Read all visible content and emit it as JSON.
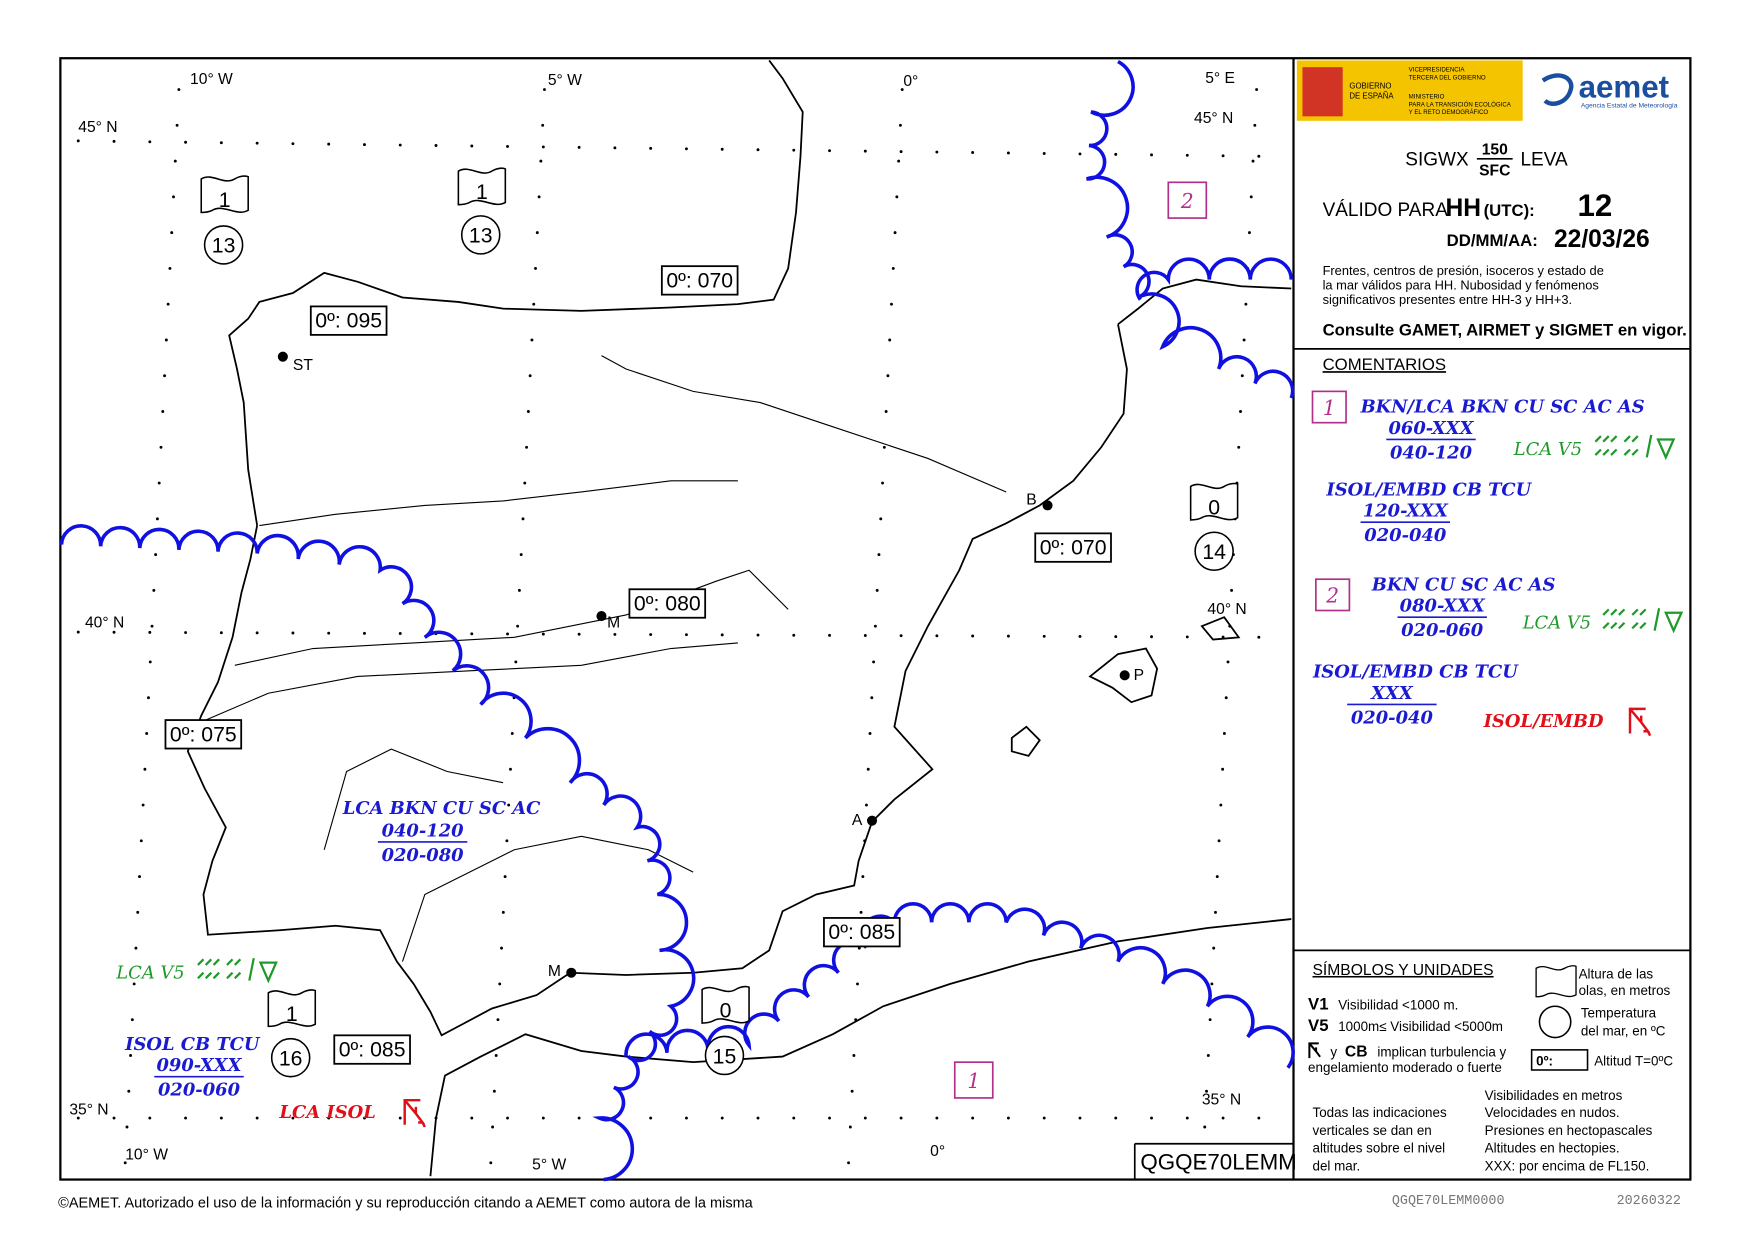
{
  "header": {
    "sigwx": "SIGWX",
    "level_top": "150",
    "level_bottom": "SFC",
    "leva": "LEVA",
    "valid_for": "VÁLIDO PARA",
    "hh": "HH",
    "utc": "(UTC):",
    "hour": "12",
    "date_label": "DD/MM/AA:",
    "date": "22/03/26",
    "description": [
      "Frentes, centros de presión, isoceros y estado de",
      "la mar válidos para HH. Nubosidad y fenómenos",
      "significativos presentes entre HH-3 y HH+3."
    ],
    "consult": "Consulte GAMET, AIRMET y SIGMET en vigor."
  },
  "logo": {
    "gov": [
      "GOBIERNO",
      "DE ESPAÑA"
    ],
    "vice": [
      "VICEPRESIDENCIA",
      "TERCERA DEL GOBIERNO"
    ],
    "ministry": [
      "MINISTERIO",
      "PARA LA TRANSICIÓN ECOLÓGICA",
      "Y EL RETO DEMOGRÁFICO"
    ],
    "aemet": "aemet",
    "agency": "Agencia Estatal de Meteorología"
  },
  "comments": {
    "title": "COMENTARIOS",
    "areas": [
      {
        "id": "1",
        "cloud": "BKN/LCA BKN CU SC AC AS",
        "cloud_top": "060-XXX",
        "cloud_base": "040-120",
        "vis": "LCA V5",
        "cb": "ISOL/EMBD CB TCU",
        "cb_top": "120-XXX",
        "cb_base": "020-040"
      },
      {
        "id": "2",
        "cloud": "BKN CU SC AC AS",
        "cloud_top": "080-XXX",
        "cloud_base": "020-060",
        "vis": "LCA V5",
        "cb": "ISOL/EMBD CB TCU",
        "cb_top": "XXX",
        "cb_base": "020-040",
        "turb": "ISOL/EMBD"
      }
    ]
  },
  "symbols": {
    "title": "SÍMBOLOS Y UNIDADES",
    "v1": "V1",
    "v1_text": "Visibilidad <1000 m.",
    "v5": "V5",
    "v5_text": "1000m≤ Visibilidad <5000m",
    "turb_y": "y",
    "turb_cb": "CB",
    "turb_text": [
      "implican turbulencia y",
      "engelamiento moderado o fuerte"
    ],
    "wave": [
      "Altura de las",
      "olas, en metros"
    ],
    "temp": [
      "Temperatura",
      "del mar, en ºC"
    ],
    "fl_box": "0º:",
    "fl_text": "Altitud T=0ºC",
    "notes": [
      "Todas las indicaciones",
      "verticales se dan en",
      "altitudes sobre el nivel",
      "del mar."
    ],
    "units": [
      "Visibilidades en metros",
      "Velocidades en nudos.",
      "Presiones en hectopascales",
      "Altitudes en hectopies.",
      "XXX: por encima de FL150."
    ]
  },
  "map": {
    "coords": [
      "10° W",
      "5° W",
      "0°",
      "5° E",
      "45° N",
      "45° N",
      "40° N",
      "40° N",
      "35° N",
      "35° N",
      "10° W",
      "5° W",
      "0°"
    ],
    "cities": [
      "ST",
      "B",
      "M",
      "P",
      "A",
      "M"
    ],
    "freezing_levels": [
      "0º: 095",
      "0º: 070",
      "0º: 070",
      "0º: 080",
      "0º: 075",
      "0º: 085",
      "0º: 085"
    ],
    "sea_states": [
      {
        "wave": "1",
        "temp": "13"
      },
      {
        "wave": "1",
        "temp": "13"
      },
      {
        "wave": "0",
        "temp": "14"
      },
      {
        "wave": "1",
        "temp": "16"
      },
      {
        "wave": "0",
        "temp": "15"
      }
    ],
    "areas": [
      "2",
      "1"
    ],
    "cloud": {
      "line": "LCA BKN CU SC AC",
      "top": "040-120",
      "base": "020-080"
    },
    "south": {
      "vis": "LCA V5",
      "cb": "ISOL CB TCU",
      "cb_top": "090-XXX",
      "cb_base": "020-060",
      "turb": "LCA ISOL"
    }
  },
  "chart_id": "QGQE70LEMM",
  "footer": {
    "copyright": "©AEMET. Autorizado el uso de la información y su reproducción citando a AEMET como autora de la misma",
    "code": "QGQE70LEMM0000",
    "date": "20260322"
  }
}
